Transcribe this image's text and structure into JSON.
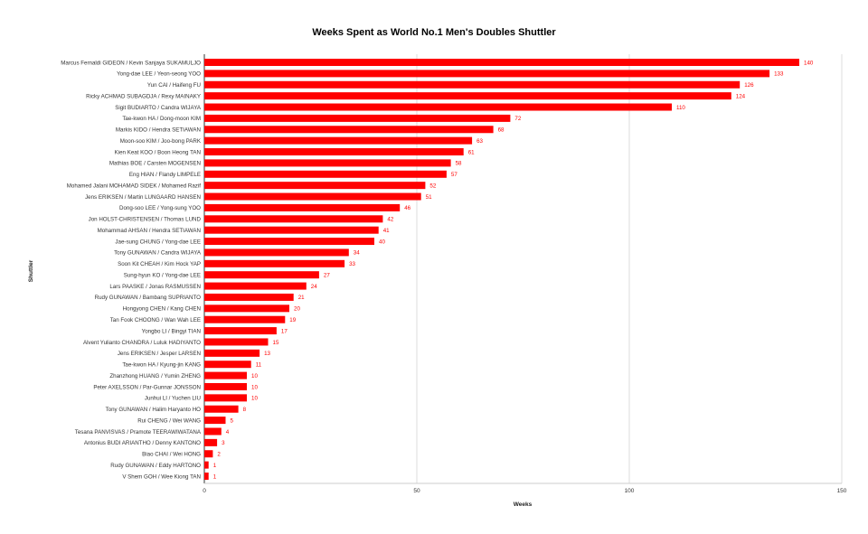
{
  "chart_data": {
    "type": "bar",
    "orientation": "horizontal",
    "title": "Weeks Spent as World No.1 Men's Doubles Shuttler",
    "xlabel": "Weeks",
    "ylabel": "Shuttler",
    "xlim": [
      0,
      150
    ],
    "xticks": [
      0,
      50,
      100,
      150
    ],
    "grid": true,
    "bar_color": "#ff0000",
    "label_color": "#ff0000",
    "categories": [
      "Marcus Fernaldi GIDEON / Kevin Sanjaya SUKAMULJO",
      "Yong-dae LEE / Yeon-seong YOO",
      "Yun CAI / Haifeng FU",
      "Ricky ACHMAD SUBAGDJA / Rexy MAINAKY",
      "Sigit BUDIARTO / Candra WIJAYA",
      "Tae-kwon HA / Dong-moon KIM",
      "Markis KIDO / Hendra SETIAWAN",
      "Moon-soo KIM / Joo-bong PARK",
      "Kien Keat KOO / Boon Heong TAN",
      "Mathias BOE / Carsten MOGENSEN",
      "Eng HIAN / Flandy LIMPELE",
      "Mohamed Jalani MOHAMAD SIDEK / Mohamed Razif",
      "Jens ERIKSEN / Martin LUNGAARD HANSEN",
      "Dong-soo LEE / Yong-sung YOO",
      "Jon HOLST-CHRISTENSEN / Thomas LUND",
      "Mohammad AHSAN / Hendra SETIAWAN",
      "Jae-sung CHUNG / Yong-dae LEE",
      "Tony GUNAWAN / Candra WIJAYA",
      "Soon Kit CHEAH / Kim Hock YAP",
      "Sung-hyun KO / Yong-dae LEE",
      "Lars PAASKE / Jonas RASMUSSEN",
      "Rudy GUNAWAN / Bambang SUPRIANTO",
      "Hongyong CHEN / Kang CHEN",
      "Tan Fook CHOONG / Wan Wah LEE",
      "Yongbo LI / Bingyi TIAN",
      "Alvent Yulianto CHANDRA / Luluk HADIYANTO",
      "Jens ERIKSEN / Jesper LARSEN",
      "Tae-kwon HA / Kyung-jin KANG",
      "Zhanzhong HUANG / Yumin ZHENG",
      "Peter AXELSSON / Par-Gunnar JONSSON",
      "Junhui LI / Yuchen LIU",
      "Tony GUNAWAN / Halim Haryanto HO",
      "Rui CHENG / Wei WANG",
      "Tesana PANVISVAS / Pramote TEERAWIWATANA",
      "Antonius BUDI ARIANTHO / Denny KANTONO",
      "Biao CHAI / Wei HONG",
      "Rudy GUNAWAN / Eddy HARTONO",
      "V Shem GOH / Wee Kiong TAN"
    ],
    "values": [
      140,
      133,
      126,
      124,
      110,
      72,
      68,
      63,
      61,
      58,
      57,
      52,
      51,
      46,
      42,
      41,
      40,
      34,
      33,
      27,
      24,
      21,
      20,
      19,
      17,
      15,
      13,
      11,
      10,
      10,
      10,
      8,
      5,
      4,
      3,
      2,
      1,
      1
    ]
  }
}
